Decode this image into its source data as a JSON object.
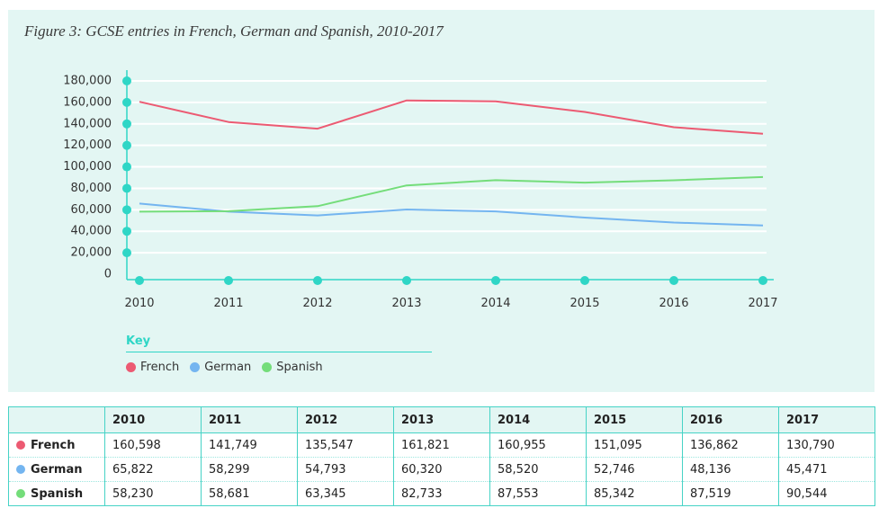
{
  "chart_data": {
    "type": "line",
    "title": "Figure 3: GCSE entries in French, German and Spanish, 2010-2017",
    "categories": [
      "2010",
      "2011",
      "2012",
      "2013",
      "2014",
      "2015",
      "2016",
      "2017"
    ],
    "y_ticks": [
      "0",
      "20,000",
      "40,000",
      "60,000",
      "80,000",
      "100,000",
      "120,000",
      "140,000",
      "160,000",
      "180,000"
    ],
    "ylim": [
      0,
      180000
    ],
    "grid": true,
    "legend_title": "Key",
    "legend_position": "bottom-left",
    "series": [
      {
        "name": "French",
        "color": "#ec5a72",
        "values": [
          160598,
          141749,
          135547,
          161821,
          160955,
          151095,
          136862,
          130790
        ]
      },
      {
        "name": "German",
        "color": "#74b5f0",
        "values": [
          65822,
          58299,
          54793,
          60320,
          58520,
          52746,
          48136,
          45471
        ]
      },
      {
        "name": "Spanish",
        "color": "#74dd7a",
        "values": [
          58230,
          58681,
          63345,
          82733,
          87553,
          85342,
          87519,
          90544
        ]
      }
    ]
  },
  "table": {
    "header": [
      "",
      "2010",
      "2011",
      "2012",
      "2013",
      "2014",
      "2015",
      "2016",
      "2017"
    ],
    "rows": [
      {
        "label": "French",
        "color": "#ec5a72",
        "cells": [
          "160,598",
          "141,749",
          "135,547",
          "161,821",
          "160,955",
          "151,095",
          "136,862",
          "130,790"
        ]
      },
      {
        "label": "German",
        "color": "#74b5f0",
        "cells": [
          "65,822",
          "58,299",
          "54,793",
          "60,320",
          "58,520",
          "52,746",
          "48,136",
          "45,471"
        ]
      },
      {
        "label": "Spanish",
        "color": "#74dd7a",
        "cells": [
          "58,230",
          "58,681",
          "63,345",
          "82,733",
          "87,553",
          "85,342",
          "87,519",
          "90,544"
        ]
      }
    ]
  },
  "axis_color": "#2fd6c6"
}
